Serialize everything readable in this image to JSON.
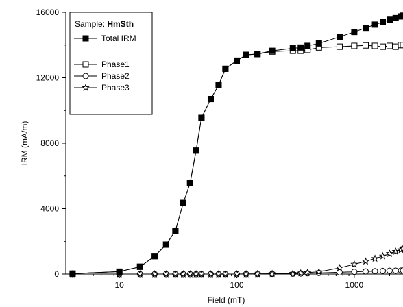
{
  "chart_data": {
    "type": "line",
    "title": "",
    "xlabel": "Field (mT)",
    "ylabel": "IRM (mA/m)",
    "xscale": "log",
    "xlim": [
      3.5,
      2600
    ],
    "ylim": [
      0,
      16000
    ],
    "xticks": [
      {
        "value": 10,
        "label": "10"
      },
      {
        "value": 100,
        "label": "100"
      },
      {
        "value": 1000,
        "label": "1000"
      }
    ],
    "yticks": [
      {
        "value": 0,
        "label": "0"
      },
      {
        "value": 4000,
        "label": "4000"
      },
      {
        "value": 8000,
        "label": "8000"
      },
      {
        "value": 12000,
        "label": "12000"
      },
      {
        "value": 16000,
        "label": "16000"
      }
    ],
    "legend": {
      "placement": "top-left",
      "sample_prefix": "Sample: ",
      "sample_name": "HmSth"
    },
    "series": [
      {
        "name": "Total IRM",
        "marker": "filled-square",
        "x": [
          4,
          10,
          15,
          20,
          25,
          30,
          35,
          40,
          45,
          50,
          60,
          70,
          80,
          100,
          120,
          150,
          200,
          300,
          350,
          400,
          500,
          750,
          1000,
          1250,
          1500,
          1750,
          2000,
          2250,
          2500,
          2600
        ],
        "y": [
          30,
          150,
          450,
          1100,
          1800,
          2650,
          4350,
          5550,
          7550,
          9550,
          10700,
          11550,
          12550,
          13050,
          13400,
          13450,
          13650,
          13800,
          13850,
          13950,
          14100,
          14500,
          14800,
          15050,
          15250,
          15400,
          15550,
          15650,
          15750,
          15800
        ]
      },
      {
        "name": "Phase1",
        "marker": "open-square",
        "x": [
          4,
          10,
          15,
          20,
          25,
          30,
          35,
          40,
          45,
          50,
          60,
          70,
          80,
          100,
          120,
          150,
          200,
          300,
          350,
          400,
          500,
          750,
          1000,
          1250,
          1500,
          1750,
          2000,
          2250,
          2500,
          2600
        ],
        "y": [
          30,
          150,
          450,
          1100,
          1800,
          2650,
          4350,
          5550,
          7550,
          9550,
          10700,
          11550,
          12550,
          13050,
          13400,
          13450,
          13600,
          13650,
          13650,
          13700,
          13850,
          13900,
          13950,
          13980,
          13950,
          13900,
          13950,
          13900,
          14000,
          14000
        ]
      },
      {
        "name": "Phase2",
        "marker": "open-circle",
        "x": [
          4,
          10,
          15,
          20,
          25,
          30,
          35,
          40,
          45,
          50,
          60,
          70,
          80,
          100,
          120,
          150,
          200,
          300,
          350,
          400,
          500,
          750,
          1000,
          1250,
          1500,
          1750,
          2000,
          2250,
          2500,
          2600
        ],
        "y": [
          0,
          0,
          0,
          0,
          0,
          0,
          0,
          0,
          0,
          0,
          0,
          0,
          0,
          0,
          5,
          10,
          15,
          25,
          35,
          50,
          70,
          110,
          140,
          160,
          180,
          195,
          205,
          210,
          215,
          220
        ]
      },
      {
        "name": "Phase3",
        "marker": "open-star",
        "x": [
          4,
          10,
          15,
          20,
          25,
          30,
          35,
          40,
          45,
          50,
          60,
          70,
          80,
          100,
          120,
          150,
          200,
          300,
          350,
          400,
          500,
          750,
          1000,
          1250,
          1500,
          1750,
          2000,
          2250,
          2500,
          2600
        ],
        "y": [
          0,
          0,
          0,
          0,
          0,
          0,
          0,
          0,
          0,
          0,
          0,
          0,
          0,
          0,
          5,
          10,
          20,
          40,
          60,
          90,
          140,
          380,
          600,
          780,
          950,
          1100,
          1250,
          1380,
          1480,
          1550
        ]
      }
    ]
  }
}
